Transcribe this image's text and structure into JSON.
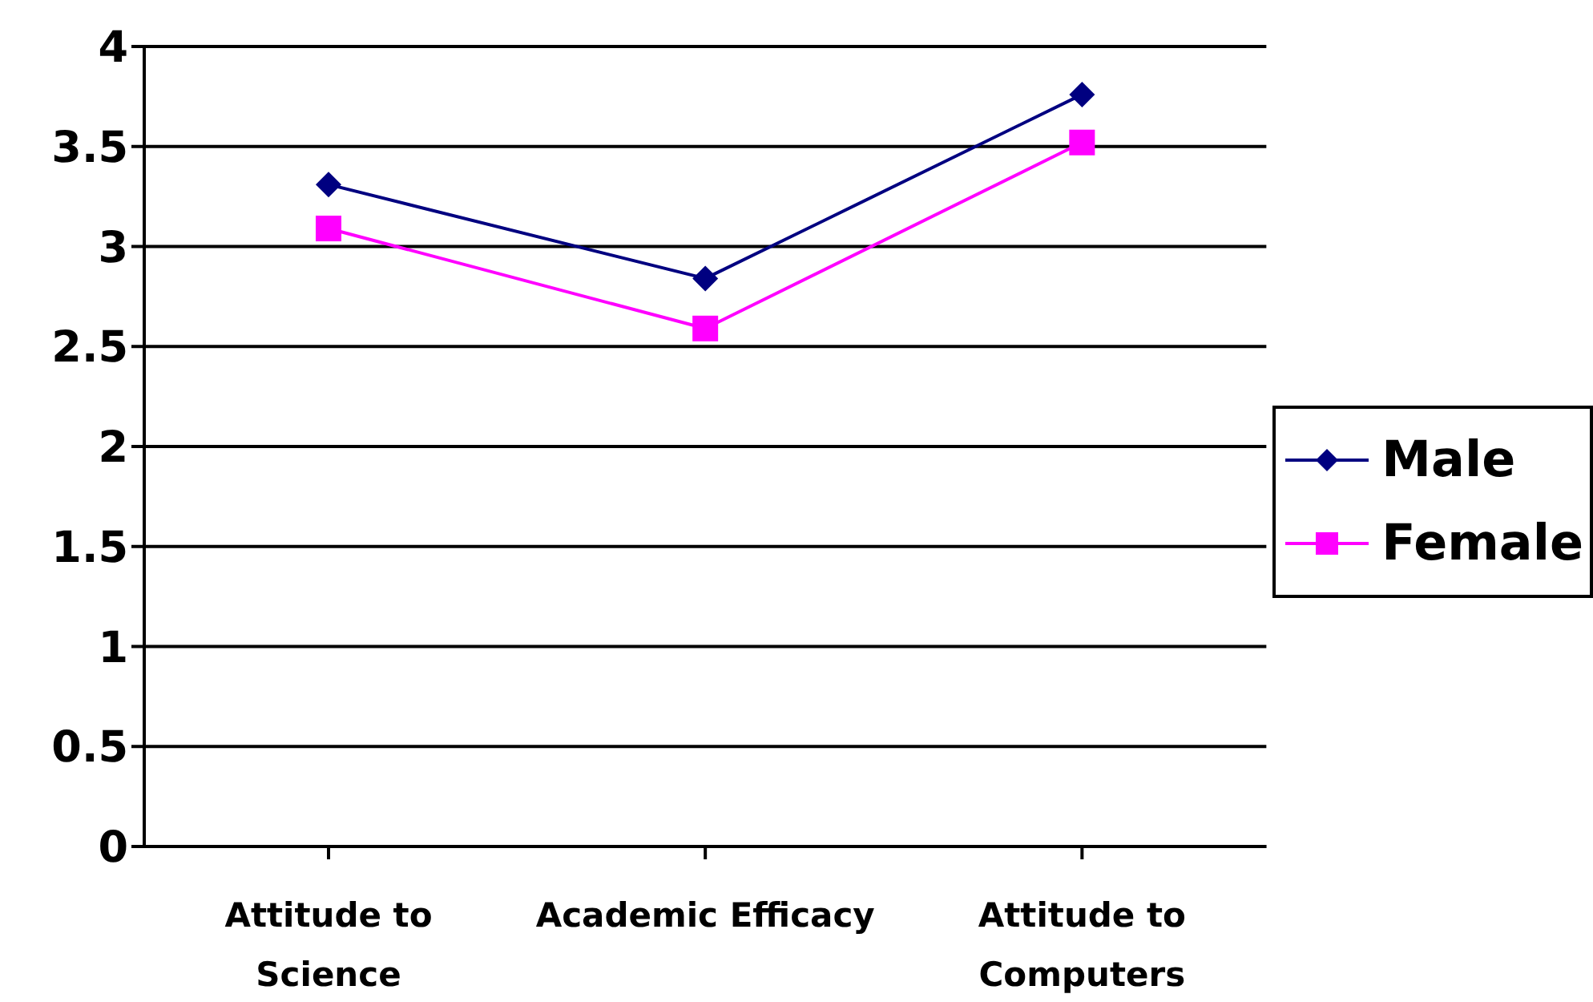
{
  "chart_data": {
    "type": "line",
    "categories": [
      "Attitude to Science",
      "Academic Efficacy",
      "Attitude to Computers"
    ],
    "series": [
      {
        "name": "Male",
        "color": "#000080",
        "marker": "diamond",
        "values": [
          3.31,
          2.84,
          3.76
        ]
      },
      {
        "name": "Female",
        "color": "#ff00ff",
        "marker": "square",
        "values": [
          3.09,
          2.59,
          3.52
        ]
      }
    ],
    "ylim": [
      0,
      4
    ],
    "yticks": [
      0,
      0.5,
      1,
      1.5,
      2,
      2.5,
      3,
      3.5,
      4
    ],
    "grid": "y",
    "legend": "right"
  }
}
